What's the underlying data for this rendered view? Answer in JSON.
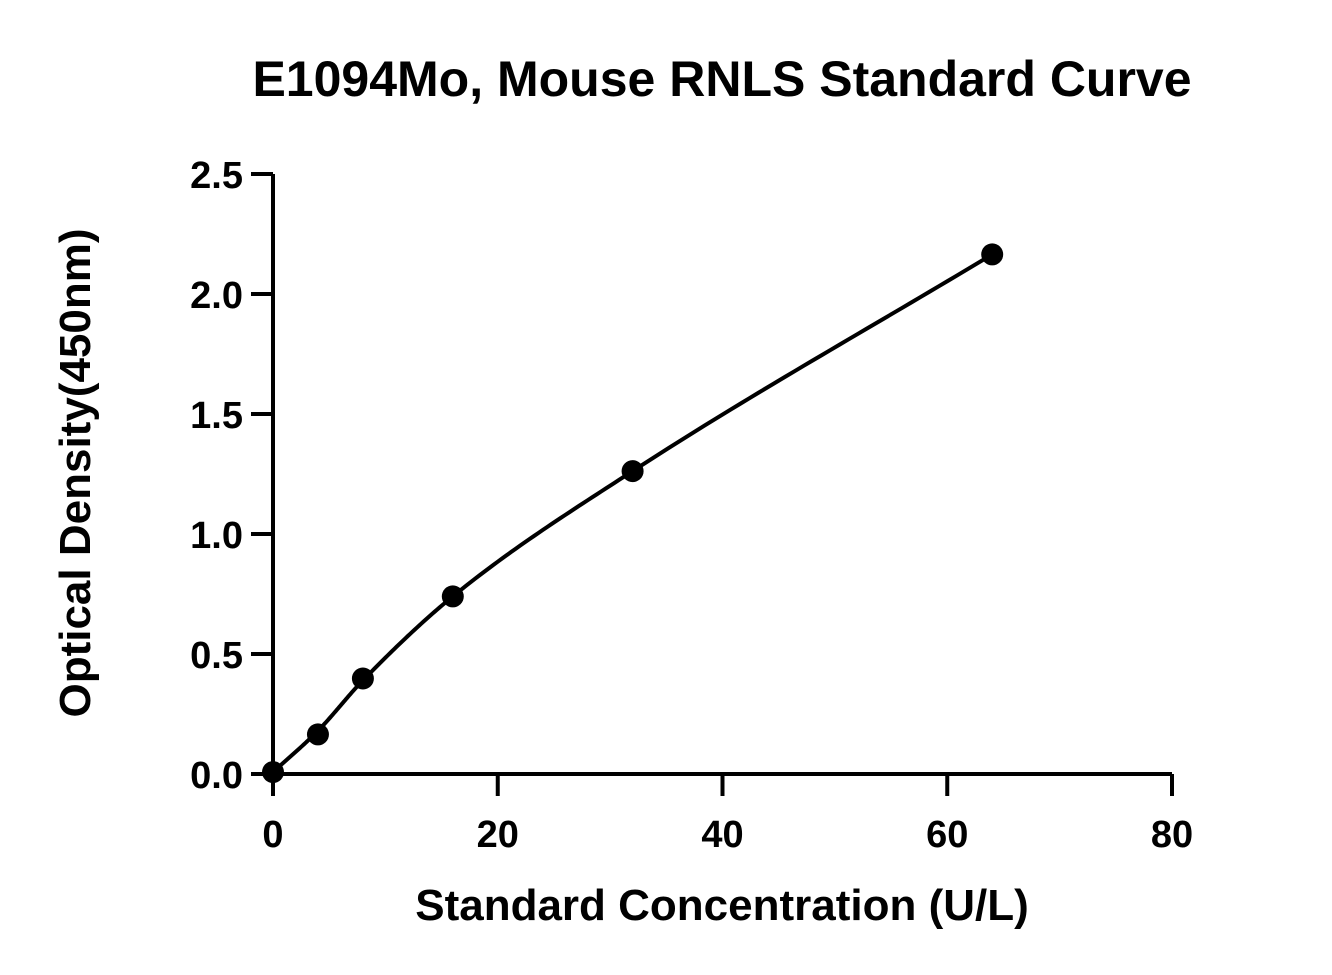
{
  "chart_data": {
    "type": "scatter",
    "title": "E1094Mo, Mouse RNLS Standard Curve",
    "xlabel": "Standard Concentration (U/L)",
    "ylabel": "Optical Density(450nm)",
    "xlim": [
      0,
      80
    ],
    "ylim": [
      0,
      2.5
    ],
    "x_ticks": [
      "0",
      "20",
      "40",
      "60",
      "80"
    ],
    "y_ticks": [
      "0.0",
      "0.5",
      "1.0",
      "1.5",
      "2.0",
      "2.5"
    ],
    "grid": false,
    "legend": "none",
    "series": [
      {
        "x": [
          0,
          4,
          8,
          16,
          32,
          64
        ],
        "y": [
          0.008,
          0.165,
          0.398,
          0.74,
          1.262,
          2.165
        ]
      }
    ],
    "fit_curve": {
      "type": "smooth",
      "x": [
        0,
        4,
        8,
        16,
        32,
        64
      ],
      "y": [
        0.008,
        0.18,
        0.39,
        0.74,
        1.262,
        2.165
      ]
    },
    "colors": {
      "marker": "#000000",
      "line": "#000000",
      "axis": "#000000"
    }
  }
}
